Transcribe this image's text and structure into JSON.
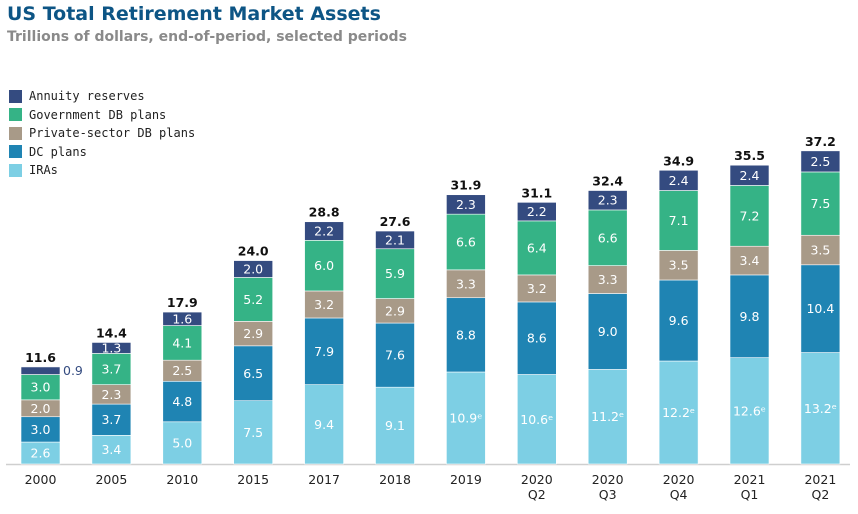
{
  "title": "US Total Retirement Market Assets",
  "subtitle": "Trillions of dollars, end-of-period, selected periods",
  "legend": [
    {
      "label": "Annuity reserves",
      "color": "#344b80"
    },
    {
      "label": "Government DB plans",
      "color": "#35b386"
    },
    {
      "label": "Private-sector DB plans",
      "color": "#a89a88"
    },
    {
      "label": "DC plans",
      "color": "#1f84b3"
    },
    {
      "label": "IRAs",
      "color": "#7dcfe4"
    }
  ],
  "chart_data": {
    "type": "bar",
    "stacked": true,
    "title": "US Total Retirement Market Assets",
    "subtitle": "Trillions of dollars, end-of-period, selected periods",
    "xlabel": "",
    "ylabel": "",
    "ylim": [
      0,
      37.2
    ],
    "grid": false,
    "legend_position": "top-left",
    "categories": [
      [
        "2000"
      ],
      [
        "2005"
      ],
      [
        "2010"
      ],
      [
        "2015"
      ],
      [
        "2017"
      ],
      [
        "2018"
      ],
      [
        "2019"
      ],
      [
        "2020",
        "Q2"
      ],
      [
        "2020",
        "Q3"
      ],
      [
        "2020",
        "Q4"
      ],
      [
        "2021",
        "Q1"
      ],
      [
        "2021",
        "Q2"
      ]
    ],
    "totals": [
      "11.6",
      "14.4",
      "17.9",
      "24.0",
      "28.8",
      "27.6",
      "31.9",
      "31.1",
      "32.4",
      "34.9",
      "35.5",
      "37.2"
    ],
    "series": [
      {
        "name": "IRAs",
        "color": "#7dcfe4",
        "values": [
          2.6,
          3.4,
          5.0,
          7.5,
          9.4,
          9.1,
          10.9,
          10.6,
          11.2,
          12.2,
          12.6,
          13.2
        ],
        "labels": [
          "2.6",
          "3.4",
          "5.0",
          "7.5",
          "9.4",
          "9.1",
          "10.9ᵉ",
          "10.6ᵉ",
          "11.2ᵉ",
          "12.2ᵉ",
          "12.6ᵉ",
          "13.2ᵉ"
        ]
      },
      {
        "name": "DC plans",
        "color": "#1f84b3",
        "values": [
          3.0,
          3.7,
          4.8,
          6.5,
          7.9,
          7.6,
          8.8,
          8.6,
          9.0,
          9.6,
          9.8,
          10.4
        ],
        "labels": [
          "3.0",
          "3.7",
          "4.8",
          "6.5",
          "7.9",
          "7.6",
          "8.8",
          "8.6",
          "9.0",
          "9.6",
          "9.8",
          "10.4"
        ]
      },
      {
        "name": "Private-sector DB plans",
        "color": "#a89a88",
        "values": [
          2.0,
          2.3,
          2.5,
          2.9,
          3.2,
          2.9,
          3.3,
          3.2,
          3.3,
          3.5,
          3.4,
          3.5
        ],
        "labels": [
          "2.0",
          "2.3",
          "2.5",
          "2.9",
          "3.2",
          "2.9",
          "3.3",
          "3.2",
          "3.3",
          "3.5",
          "3.4",
          "3.5"
        ]
      },
      {
        "name": "Government DB plans",
        "color": "#35b386",
        "values": [
          3.0,
          3.7,
          4.1,
          5.2,
          6.0,
          5.9,
          6.6,
          6.4,
          6.6,
          7.1,
          7.2,
          7.5
        ],
        "labels": [
          "3.0",
          "3.7",
          "4.1",
          "5.2",
          "6.0",
          "5.9",
          "6.6",
          "6.4",
          "6.6",
          "7.1",
          "7.2",
          "7.5"
        ]
      },
      {
        "name": "Annuity reserves",
        "color": "#344b80",
        "values": [
          0.9,
          1.3,
          1.6,
          2.0,
          2.2,
          2.1,
          2.3,
          2.2,
          2.3,
          2.4,
          2.4,
          2.5
        ],
        "labels": [
          "0.9",
          "1.3",
          "1.6",
          "2.0",
          "2.2",
          "2.1",
          "2.3",
          "2.2",
          "2.3",
          "2.4",
          "2.4",
          "2.5"
        ]
      }
    ],
    "outside_labels": [
      {
        "category_index": 0,
        "series": "Annuity reserves"
      }
    ]
  }
}
